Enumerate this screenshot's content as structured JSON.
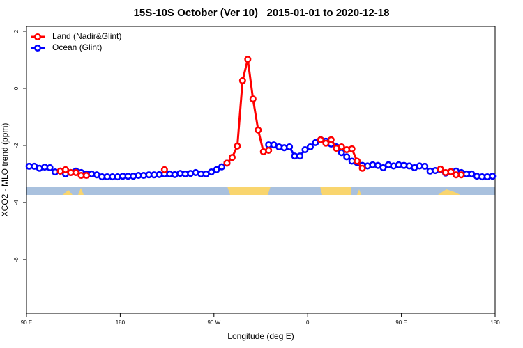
{
  "chart_data": {
    "type": "line",
    "title": "15S-10S October (Ver 10)   2015-01-01 to 2020-12-18",
    "x_label": "Longitude (deg E)",
    "y_label": "XCO2 - MLO trend (ppm)",
    "x": [
      92.5,
      97.5,
      102.5,
      107.5,
      112.5,
      117.5,
      122.5,
      127.5,
      132.5,
      137.5,
      142.5,
      147.5,
      152.5,
      157.5,
      162.5,
      167.5,
      172.5,
      177.5,
      182.5,
      187.5,
      192.5,
      197.5,
      202.5,
      207.5,
      212.5,
      217.5,
      222.5,
      227.5,
      232.5,
      237.5,
      242.5,
      247.5,
      252.5,
      257.5,
      262.5,
      267.5,
      272.5,
      277.5,
      282.5,
      287.5,
      292.5,
      297.5,
      302.5,
      307.5,
      312.5,
      317.5,
      322.5,
      327.5,
      332.5,
      337.5,
      342.5,
      347.5,
      352.5,
      357.5,
      362.5,
      367.5,
      372.5,
      377.5,
      382.5,
      387.5,
      392.5,
      397.5,
      402.5,
      407.5,
      412.5,
      417.5,
      422.5,
      427.5,
      432.5,
      437.5,
      442.5,
      447.5,
      452.5,
      457.5,
      462.5,
      467.5,
      472.5,
      477.5,
      482.5,
      487.5,
      492.5,
      497.5,
      502.5,
      507.5,
      512.5,
      517.5,
      522.5,
      527.5,
      532.5,
      537.5
    ],
    "series": [
      {
        "name": "Ocean (Glint)",
        "color": "#0000ff",
        "values": [
          -2.73,
          -2.73,
          -2.8,
          -2.76,
          -2.78,
          -2.93,
          -2.9,
          -3.0,
          -2.95,
          -2.9,
          -2.95,
          -3.0,
          -3.0,
          -3.03,
          -3.1,
          -3.1,
          -3.1,
          -3.1,
          -3.08,
          -3.08,
          -3.08,
          -3.05,
          -3.05,
          -3.03,
          -3.03,
          -3.02,
          -3.0,
          -3.0,
          -3.02,
          -2.98,
          -3.0,
          -2.98,
          -2.95,
          -3.0,
          -3.0,
          -2.93,
          -2.85,
          -2.75,
          -2.62,
          null,
          null,
          null,
          null,
          null,
          null,
          null,
          -1.98,
          -1.98,
          -2.05,
          -2.08,
          -2.05,
          -2.37,
          -2.37,
          -2.15,
          -2.05,
          -1.9,
          -1.8,
          -1.85,
          -1.95,
          -2.05,
          -2.25,
          -2.4,
          -2.55,
          -2.6,
          -2.7,
          -2.72,
          -2.68,
          -2.7,
          -2.78,
          -2.68,
          -2.72,
          -2.68,
          -2.7,
          -2.72,
          -2.78,
          -2.72,
          -2.73,
          -2.9,
          -2.88,
          -2.85,
          -2.97,
          -2.92,
          -2.9,
          -2.95,
          -3.0,
          -3.0,
          -3.08,
          -3.1,
          -3.1,
          -3.08
        ]
      },
      {
        "name": "Land (Nadir&Glint)",
        "color": "#ff0000",
        "values": [
          null,
          null,
          null,
          null,
          null,
          null,
          -2.9,
          -2.85,
          -2.95,
          -2.95,
          -3.05,
          -3.05,
          null,
          null,
          null,
          null,
          null,
          null,
          null,
          null,
          null,
          null,
          null,
          null,
          null,
          null,
          -2.85,
          null,
          null,
          null,
          null,
          null,
          null,
          null,
          null,
          null,
          null,
          null,
          -2.62,
          -2.42,
          -2.02,
          0.27,
          1.02,
          -0.37,
          -1.46,
          -2.22,
          -2.17,
          null,
          null,
          null,
          null,
          null,
          null,
          null,
          null,
          null,
          -1.8,
          -1.92,
          -1.8,
          -2.1,
          -2.05,
          -2.15,
          -2.12,
          -2.55,
          -2.8,
          null,
          null,
          null,
          null,
          null,
          null,
          null,
          null,
          null,
          null,
          null,
          null,
          null,
          null,
          -2.83,
          -2.95,
          -2.92,
          -3.03,
          -3.03,
          null,
          null,
          null,
          null,
          null,
          null
        ]
      }
    ],
    "xlim": [
      90,
      540
    ],
    "xticks": [
      {
        "value": 90,
        "label": "90 E"
      },
      180,
      {
        "value": 270,
        "label": "90 W"
      },
      {
        "value": 360,
        "label": "0"
      },
      {
        "value": 450,
        "label": "90 E"
      },
      {
        "value": 540,
        "label": "180"
      }
    ],
    "ylim": [
      -7.88,
      2.17
    ],
    "yticks": [
      2,
      0,
      -2,
      -4,
      -6
    ],
    "legend": "top-left"
  }
}
